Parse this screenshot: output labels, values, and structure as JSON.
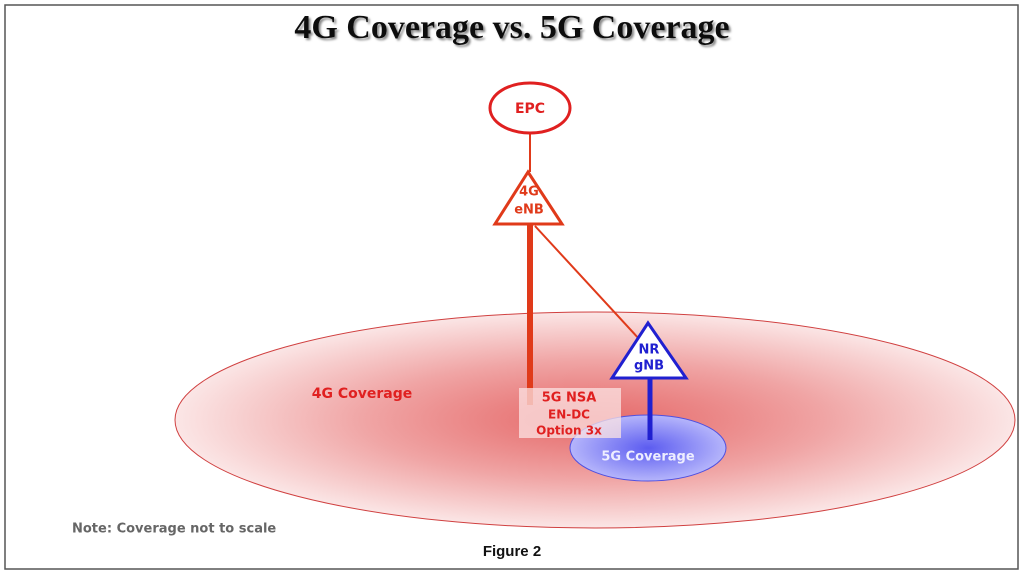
{
  "title": "4G Coverage vs. 5G Coverage",
  "nodes": [
    {
      "lines": [
        "EPC"
      ]
    },
    {
      "lines": [
        "4G",
        "eNB"
      ]
    },
    {
      "lines": [
        "NR",
        "gNB"
      ]
    }
  ],
  "areas": [
    {
      "label": "4G Coverage"
    },
    {
      "label": "5G Coverage"
    }
  ],
  "mode": {
    "lines": [
      "5G NSA",
      "EN-DC",
      "Option 3x"
    ]
  },
  "note": "Note: Coverage not to scale",
  "caption": "Figure 2"
}
